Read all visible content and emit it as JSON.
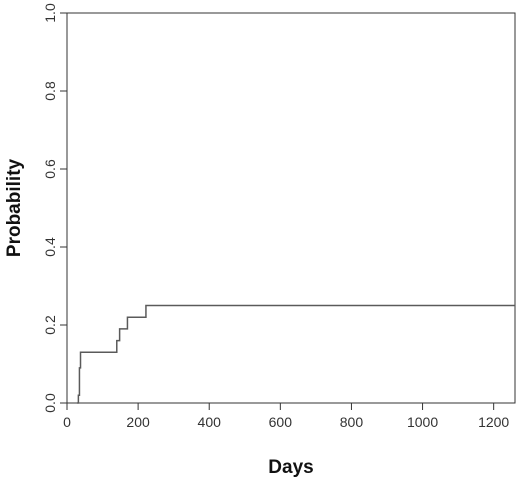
{
  "chart_data": {
    "type": "line",
    "step": true,
    "title": "",
    "xlabel": "Days",
    "ylabel": "Probability",
    "xlim": [
      0,
      1260
    ],
    "ylim": [
      0,
      1
    ],
    "xticks": [
      0,
      200,
      400,
      600,
      800,
      1000,
      1200
    ],
    "xtick_labels": [
      "0",
      "200",
      "400",
      "600",
      "800",
      "1000",
      "1200"
    ],
    "yticks": [
      0,
      0.2,
      0.4,
      0.6,
      0.8,
      1
    ],
    "ytick_labels": [
      "0.0",
      "0.2",
      "0.4",
      "0.6",
      "0.8",
      "1.0"
    ],
    "grid": false,
    "line_color": "#5a5a5a",
    "series": [
      {
        "x": [
          28,
          32,
          35,
          38,
          140,
          148,
          170,
          222,
          1260
        ],
        "y": [
          0,
          0.02,
          0.09,
          0.13,
          0.16,
          0.19,
          0.22,
          0.25,
          0.25
        ]
      }
    ]
  }
}
